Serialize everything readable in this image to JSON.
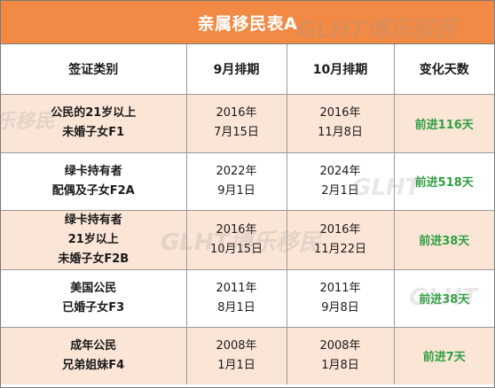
{
  "title": "亲属移民表A",
  "headers": {
    "category": "签证类别",
    "september": "9月排期",
    "october": "10月排期",
    "change": "变化天数"
  },
  "rows": [
    {
      "category_lines": [
        "公民的21岁以上",
        "未婚子女F1"
      ],
      "sep_lines": [
        "2016年",
        "7月15日"
      ],
      "oct_lines": [
        "2016年",
        "11月8日"
      ],
      "change": "前进116天"
    },
    {
      "category_lines": [
        "绿卡持有者",
        "配偶及子女F2A"
      ],
      "sep_lines": [
        "2022年",
        "9月1日"
      ],
      "oct_lines": [
        "2024年",
        "2月1日"
      ],
      "change": "前进518天"
    },
    {
      "category_lines": [
        "绿卡持有者",
        "21岁以上",
        "未婚子女F2B"
      ],
      "sep_lines": [
        "2016年",
        "10月15日"
      ],
      "oct_lines": [
        "2016年",
        "11月22日"
      ],
      "change": "前进38天"
    },
    {
      "category_lines": [
        "美国公民",
        "已婚子女F3"
      ],
      "sep_lines": [
        "2011年",
        "8月1日"
      ],
      "oct_lines": [
        "2011年",
        "9月8日"
      ],
      "change": "前进38天"
    },
    {
      "category_lines": [
        "成年公民",
        "兄弟姐妹F4"
      ],
      "sep_lines": [
        "2008年",
        "1月1日"
      ],
      "oct_lines": [
        "2008年",
        "1月8日"
      ],
      "change": "前进7天"
    }
  ],
  "watermark": {
    "latin": "GLHT",
    "chinese": "博乐移民"
  },
  "colors": {
    "title_bar": "#f28a45",
    "tinted_row": "#fbe5d6",
    "change_text": "#2ea043",
    "border": "#9a9a9a"
  }
}
